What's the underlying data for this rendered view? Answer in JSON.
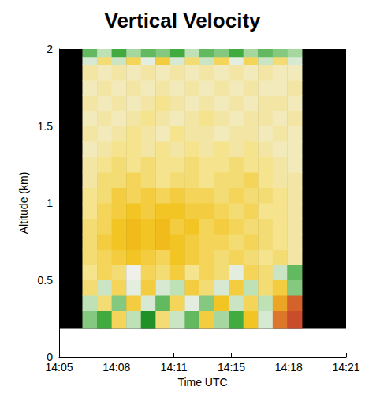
{
  "chart_data": {
    "type": "heatmap",
    "title": "Vertical Velocity",
    "x_label": "Time UTC",
    "y_label": "Altitude (km)",
    "xlim": [
      5,
      21.667
    ],
    "xticks": [
      {
        "value": 5,
        "label": "14:05"
      },
      {
        "value": 8.333,
        "label": "14:08"
      },
      {
        "value": 11.667,
        "label": "14:11"
      },
      {
        "value": 15,
        "label": "14:15"
      },
      {
        "value": 18.333,
        "label": "14:18"
      },
      {
        "value": 21.667,
        "label": "14:21"
      }
    ],
    "ylim": [
      0,
      2
    ],
    "yticks": [
      0,
      0.5,
      1,
      1.5,
      2
    ],
    "x_bins": [
      6.35,
      7.2,
      8.05,
      8.9,
      9.75,
      10.6,
      11.45,
      12.3,
      13.15,
      14.0,
      14.85,
      15.7,
      16.55,
      17.4,
      18.25,
      19.1
    ],
    "y_bins": [
      0.19,
      0.3,
      0.4,
      0.5,
      0.6,
      0.7,
      0.8,
      0.9,
      1.0,
      1.1,
      1.2,
      1.3,
      1.4,
      1.5,
      1.6,
      1.7,
      1.8,
      1.9,
      1.95,
      2.0
    ],
    "zlim": [
      -1.5,
      1.5
    ],
    "colors": [
      "#0a6e1e",
      "#2aa02a",
      "#b9dfb0",
      "#eef0ec",
      "#f5e38a",
      "#f2c21a",
      "#e8902a",
      "#c0392b"
    ],
    "cells": [
      [
        -0.8,
        -1.0,
        0.4,
        -0.6,
        -1.2,
        0.3,
        -0.5,
        -0.9,
        0.5,
        -0.7,
        -1.0,
        0.6,
        -0.4,
        1.2,
        1.4
      ],
      [
        -0.6,
        0.3,
        -0.8,
        0.5,
        -0.4,
        -0.9,
        0.4,
        -0.3,
        -0.8,
        0.6,
        -0.5,
        0.4,
        -0.6,
        0.9,
        1.3
      ],
      [
        0.3,
        -0.5,
        0.4,
        -0.3,
        0.5,
        -0.4,
        -0.6,
        0.5,
        0.3,
        -0.4,
        0.5,
        -0.6,
        0.3,
        0.5,
        -0.8
      ],
      [
        0.2,
        0.4,
        0.3,
        -0.2,
        0.4,
        0.3,
        0.5,
        0.2,
        0.4,
        0.3,
        -0.3,
        0.4,
        0.3,
        -0.5,
        -0.9
      ],
      [
        0.3,
        0.4,
        0.5,
        0.6,
        0.5,
        0.4,
        0.6,
        0.5,
        0.4,
        0.3,
        0.4,
        0.3,
        0.2,
        0.3,
        0.1
      ],
      [
        0.3,
        0.5,
        0.6,
        0.7,
        0.6,
        0.7,
        0.6,
        0.5,
        0.4,
        0.4,
        0.3,
        0.4,
        0.3,
        0.2,
        0.1
      ],
      [
        0.3,
        0.4,
        0.6,
        0.7,
        0.6,
        0.7,
        0.5,
        0.6,
        0.4,
        0.5,
        0.4,
        0.3,
        0.3,
        0.2,
        0.1
      ],
      [
        0.2,
        0.4,
        0.5,
        0.6,
        0.5,
        0.6,
        0.6,
        0.5,
        0.5,
        0.4,
        0.3,
        0.4,
        0.2,
        0.2,
        0.1
      ],
      [
        0.2,
        0.3,
        0.5,
        0.4,
        0.5,
        0.4,
        0.5,
        0.4,
        0.4,
        0.3,
        0.4,
        0.3,
        0.3,
        0.2,
        0.1
      ],
      [
        0.1,
        0.3,
        0.3,
        0.4,
        0.3,
        0.2,
        0.3,
        0.3,
        0.2,
        0.3,
        0.3,
        0.4,
        0.2,
        0.1,
        0.1
      ],
      [
        0.1,
        0.2,
        0.3,
        0.2,
        0.3,
        0.2,
        0.2,
        0.3,
        0.2,
        0.2,
        0.3,
        0.2,
        0.2,
        0.1,
        0.0
      ],
      [
        0.0,
        0.1,
        0.2,
        0.2,
        0.1,
        0.2,
        0.1,
        0.2,
        0.1,
        0.2,
        0.1,
        0.2,
        0.1,
        0.0,
        0.0
      ],
      [
        0.1,
        0.0,
        0.1,
        0.2,
        0.1,
        0.0,
        0.2,
        0.1,
        0.1,
        0.0,
        0.1,
        0.1,
        0.0,
        0.1,
        0.0
      ],
      [
        0.0,
        0.1,
        0.0,
        0.1,
        0.2,
        0.1,
        0.0,
        0.1,
        0.2,
        0.1,
        0.0,
        0.1,
        0.1,
        0.0,
        0.1
      ],
      [
        0.1,
        0.0,
        0.1,
        0.0,
        0.1,
        0.2,
        0.1,
        0.0,
        0.1,
        0.0,
        0.1,
        0.0,
        0.1,
        0.1,
        0.0
      ],
      [
        0.0,
        0.1,
        0.0,
        0.1,
        0.0,
        0.1,
        0.0,
        0.1,
        0.0,
        0.1,
        0.0,
        0.1,
        0.0,
        0.0,
        0.1
      ],
      [
        0.1,
        0.0,
        0.1,
        0.0,
        0.1,
        0.0,
        0.1,
        0.0,
        0.1,
        0.0,
        0.1,
        0.0,
        0.1,
        0.0,
        0.0
      ],
      [
        -0.4,
        0.3,
        -0.5,
        0.4,
        -0.3,
        0.5,
        -0.4,
        0.3,
        -0.5,
        0.4,
        -0.3,
        0.4,
        -0.5,
        0.3,
        -0.4
      ],
      [
        -0.9,
        -0.6,
        -1.0,
        -0.7,
        -0.9,
        -0.8,
        -1.0,
        -0.6,
        -0.9,
        -0.8,
        -1.0,
        -0.7,
        -0.9,
        -0.8,
        -0.7
      ]
    ]
  }
}
